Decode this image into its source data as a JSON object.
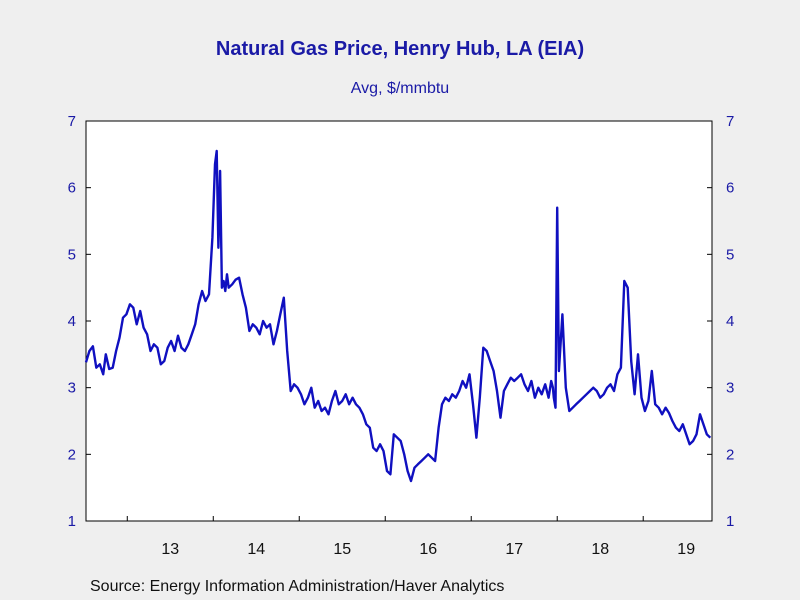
{
  "chart_data": {
    "type": "line",
    "title": "Natural Gas Price, Henry Hub, LA (EIA)",
    "subtitle": "Avg, $/mmbtu",
    "source": "Source:  Energy Information Administration/Haver Analytics",
    "ylim": [
      1,
      7
    ],
    "yticks": [
      1,
      2,
      3,
      4,
      5,
      6,
      7
    ],
    "xlim": [
      2012.52,
      2019.8
    ],
    "xtick_positions": [
      2013,
      2014,
      2015,
      2016,
      2017,
      2018,
      2019
    ],
    "xtick_labels": [
      "13",
      "14",
      "15",
      "16",
      "17",
      "18",
      "19"
    ],
    "line_color": "#1010c0",
    "series": [
      {
        "x": [
          2012.52,
          2012.56,
          2012.6,
          2012.64,
          2012.68,
          2012.72,
          2012.75,
          2012.79,
          2012.83,
          2012.87,
          2012.91,
          2012.95,
          2012.99,
          2013.03,
          2013.07,
          2013.11,
          2013.15,
          2013.19,
          2013.23,
          2013.27,
          2013.31,
          2013.35,
          2013.39,
          2013.43,
          2013.47,
          2013.51,
          2013.55,
          2013.59,
          2013.63,
          2013.67,
          2013.71,
          2013.75,
          2013.79,
          2013.83,
          2013.87,
          2013.91,
          2013.95,
          2013.99,
          2014.02,
          2014.04,
          2014.06,
          2014.08,
          2014.1,
          2014.12,
          2014.14,
          2014.16,
          2014.18,
          2014.22,
          2014.26,
          2014.3,
          2014.34,
          2014.38,
          2014.42,
          2014.46,
          2014.5,
          2014.54,
          2014.58,
          2014.62,
          2014.66,
          2014.7,
          2014.74,
          2014.78,
          2014.82,
          2014.86,
          2014.9,
          2014.94,
          2014.98,
          2015.02,
          2015.06,
          2015.1,
          2015.14,
          2015.18,
          2015.22,
          2015.26,
          2015.3,
          2015.34,
          2015.38,
          2015.42,
          2015.46,
          2015.5,
          2015.54,
          2015.58,
          2015.62,
          2015.66,
          2015.7,
          2015.74,
          2015.78,
          2015.82,
          2015.86,
          2015.9,
          2015.94,
          2015.98,
          2016.02,
          2016.06,
          2016.1,
          2016.14,
          2016.18,
          2016.22,
          2016.26,
          2016.3,
          2016.34,
          2016.38,
          2016.42,
          2016.46,
          2016.5,
          2016.54,
          2016.58,
          2016.62,
          2016.66,
          2016.7,
          2016.74,
          2016.78,
          2016.82,
          2016.86,
          2016.9,
          2016.94,
          2016.98,
          2017.02,
          2017.06,
          2017.1,
          2017.14,
          2017.18,
          2017.22,
          2017.26,
          2017.3,
          2017.34,
          2017.38,
          2017.42,
          2017.46,
          2017.5,
          2017.54,
          2017.58,
          2017.62,
          2017.66,
          2017.7,
          2017.74,
          2017.78,
          2017.82,
          2017.86,
          2017.9,
          2017.93,
          2017.95,
          2017.96,
          2017.98,
          2018.0,
          2018.02,
          2018.06,
          2018.1,
          2018.14,
          2018.18,
          2018.22,
          2018.26,
          2018.3,
          2018.34,
          2018.38,
          2018.42,
          2018.46,
          2018.5,
          2018.54,
          2018.58,
          2018.62,
          2018.66,
          2018.7,
          2018.74,
          2018.78,
          2018.82,
          2018.86,
          2018.9,
          2018.94,
          2018.98,
          2019.02,
          2019.06,
          2019.1,
          2019.14,
          2019.18,
          2019.22,
          2019.26,
          2019.3,
          2019.34,
          2019.38,
          2019.42,
          2019.46,
          2019.5,
          2019.54,
          2019.58,
          2019.62,
          2019.66,
          2019.7,
          2019.74,
          2019.78
        ],
        "values": [
          3.38,
          3.55,
          3.62,
          3.3,
          3.35,
          3.2,
          3.5,
          3.28,
          3.3,
          3.55,
          3.75,
          4.05,
          4.1,
          4.25,
          4.2,
          3.95,
          4.15,
          3.9,
          3.8,
          3.55,
          3.65,
          3.6,
          3.35,
          3.4,
          3.6,
          3.7,
          3.55,
          3.78,
          3.6,
          3.55,
          3.65,
          3.8,
          3.95,
          4.25,
          4.45,
          4.3,
          4.4,
          5.25,
          6.35,
          6.55,
          5.1,
          6.25,
          4.5,
          4.6,
          4.45,
          4.7,
          4.5,
          4.55,
          4.62,
          4.65,
          4.4,
          4.2,
          3.85,
          3.95,
          3.9,
          3.8,
          4.0,
          3.9,
          3.95,
          3.65,
          3.85,
          4.1,
          4.35,
          3.55,
          2.95,
          3.05,
          3.0,
          2.9,
          2.75,
          2.85,
          3.0,
          2.7,
          2.8,
          2.65,
          2.7,
          2.6,
          2.8,
          2.95,
          2.75,
          2.8,
          2.9,
          2.75,
          2.85,
          2.75,
          2.7,
          2.6,
          2.45,
          2.4,
          2.1,
          2.05,
          2.15,
          2.05,
          1.75,
          1.7,
          2.3,
          2.25,
          2.2,
          2.0,
          1.75,
          1.6,
          1.8,
          1.85,
          1.9,
          1.95,
          2.0,
          1.95,
          1.9,
          2.4,
          2.75,
          2.85,
          2.8,
          2.9,
          2.85,
          2.95,
          3.1,
          3.0,
          3.2,
          2.75,
          2.25,
          2.85,
          3.6,
          3.55,
          3.4,
          3.25,
          2.95,
          2.55,
          2.95,
          3.05,
          3.15,
          3.1,
          3.15,
          3.2,
          3.05,
          2.95,
          3.1,
          2.85,
          3.0,
          2.9,
          3.05,
          2.85,
          3.1,
          3.0,
          2.85,
          2.7,
          5.7,
          3.25,
          4.1,
          3.0,
          2.65,
          2.7,
          2.75,
          2.8,
          2.85,
          2.9,
          2.95,
          3.0,
          2.95,
          2.85,
          2.9,
          3.0,
          3.05,
          2.95,
          3.2,
          3.3,
          4.6,
          4.5,
          3.4,
          2.9,
          3.5,
          2.85,
          2.65,
          2.8,
          3.25,
          2.75,
          2.7,
          2.6,
          2.7,
          2.62,
          2.5,
          2.4,
          2.35,
          2.45,
          2.3,
          2.15,
          2.2,
          2.3,
          2.6,
          2.45,
          2.3,
          2.25
        ]
      }
    ]
  }
}
